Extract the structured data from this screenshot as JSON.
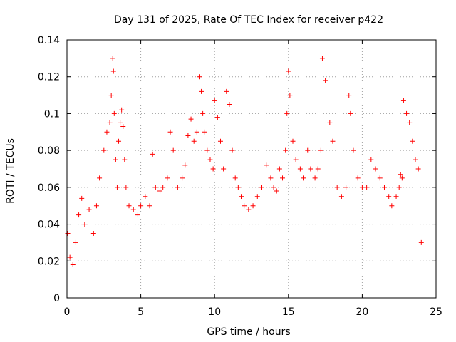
{
  "chart_data": {
    "type": "scatter",
    "title": "Day 131 of 2025, Rate Of TEC Index for receiver p422",
    "xlabel": "GPS time / hours",
    "ylabel": "ROTI / TECUs",
    "xlim": [
      0,
      25
    ],
    "ylim": [
      0,
      0.14
    ],
    "xticks": [
      "0",
      "5",
      "10",
      "15",
      "20",
      "25"
    ],
    "yticks": [
      "0",
      "0.02",
      "0.04",
      "0.06",
      "0.08",
      "0.1",
      "0.12",
      "0.14"
    ],
    "grid": true,
    "marker": "+",
    "color": "#ff0000",
    "series": [
      {
        "x": [
          0.05,
          0.2,
          0.4,
          0.6,
          0.8,
          1.0,
          1.2,
          1.5,
          1.8,
          2.0,
          2.2,
          2.5,
          2.7,
          2.9,
          3.0,
          3.1,
          3.15,
          3.2,
          3.3,
          3.4,
          3.5,
          3.6,
          3.7,
          3.8,
          3.9,
          4.0,
          4.2,
          4.5,
          4.8,
          5.0,
          5.3,
          5.6,
          5.8,
          6.0,
          6.3,
          6.5,
          6.8,
          7.0,
          7.2,
          7.5,
          7.8,
          8.0,
          8.2,
          8.4,
          8.6,
          8.8,
          9.0,
          9.1,
          9.2,
          9.3,
          9.5,
          9.7,
          9.9,
          10.0,
          10.2,
          10.4,
          10.6,
          10.8,
          11.0,
          11.2,
          11.4,
          11.6,
          11.8,
          12.0,
          12.3,
          12.6,
          12.9,
          13.2,
          13.5,
          13.8,
          14.0,
          14.2,
          14.4,
          14.6,
          14.8,
          14.9,
          15.0,
          15.1,
          15.3,
          15.5,
          15.8,
          16.0,
          16.3,
          16.5,
          16.8,
          17.0,
          17.2,
          17.3,
          17.5,
          17.8,
          18.0,
          18.3,
          18.6,
          18.9,
          19.1,
          19.2,
          19.4,
          19.7,
          20.0,
          20.3,
          20.6,
          20.9,
          21.2,
          21.5,
          21.8,
          22.0,
          22.3,
          22.5,
          22.6,
          22.7,
          22.8,
          23.0,
          23.2,
          23.4,
          23.6,
          23.8,
          24.0
        ],
        "y": [
          0.035,
          0.022,
          0.018,
          0.03,
          0.045,
          0.054,
          0.04,
          0.048,
          0.035,
          0.05,
          0.065,
          0.08,
          0.09,
          0.095,
          0.11,
          0.13,
          0.123,
          0.1,
          0.075,
          0.06,
          0.085,
          0.095,
          0.102,
          0.093,
          0.075,
          0.06,
          0.05,
          0.048,
          0.045,
          0.05,
          0.055,
          0.05,
          0.078,
          0.06,
          0.058,
          0.06,
          0.065,
          0.09,
          0.08,
          0.06,
          0.065,
          0.072,
          0.088,
          0.097,
          0.085,
          0.09,
          0.12,
          0.112,
          0.1,
          0.09,
          0.08,
          0.075,
          0.07,
          0.107,
          0.098,
          0.085,
          0.07,
          0.112,
          0.105,
          0.08,
          0.065,
          0.06,
          0.055,
          0.05,
          0.048,
          0.05,
          0.055,
          0.06,
          0.072,
          0.065,
          0.06,
          0.058,
          0.07,
          0.065,
          0.08,
          0.1,
          0.123,
          0.11,
          0.085,
          0.075,
          0.07,
          0.065,
          0.08,
          0.07,
          0.065,
          0.07,
          0.08,
          0.13,
          0.118,
          0.095,
          0.085,
          0.06,
          0.055,
          0.06,
          0.11,
          0.1,
          0.08,
          0.065,
          0.06,
          0.06,
          0.075,
          0.07,
          0.065,
          0.06,
          0.055,
          0.05,
          0.055,
          0.06,
          0.067,
          0.065,
          0.107,
          0.1,
          0.095,
          0.085,
          0.075,
          0.07,
          0.03
        ]
      }
    ]
  }
}
